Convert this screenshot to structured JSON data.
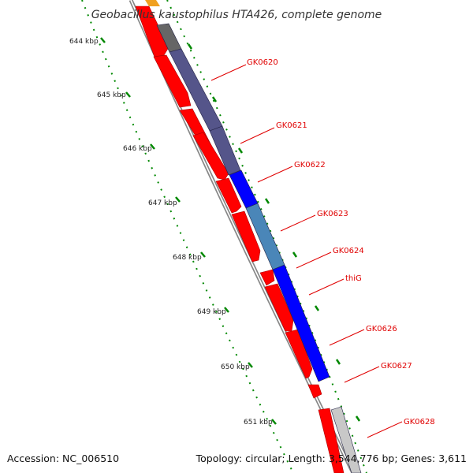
{
  "title": "Geobacillus kaustophilus HTA426, complete genome",
  "footer": {
    "accession": "Accession: NC_006510",
    "topology": "Topology: circular; Length: 3,544,776 bp; Genes: 3,611"
  },
  "colors": {
    "forward_cds": "#ff0000",
    "reverse_cds_dark": "#55558a",
    "reverse_cds_blue": "#0000ff",
    "reverse_cds_steel": "#4a86b8",
    "reverse_cds_gray": "#666666",
    "reverse_cds_light": "#c8c8c8",
    "orange_feature": "#f0a020",
    "backbone": "#888888",
    "ticks": "#008800",
    "label_lines": "#e00000"
  },
  "kbp_labels": [
    "644 kbp",
    "645 kbp",
    "646 kbp",
    "647 kbp",
    "648 kbp",
    "649 kbp",
    "650 kbp",
    "651 kbp"
  ],
  "genes": [
    {
      "name": "GK0620"
    },
    {
      "name": "GK0621"
    },
    {
      "name": "GK0622"
    },
    {
      "name": "GK0623"
    },
    {
      "name": "GK0624"
    },
    {
      "name": "thiG"
    },
    {
      "name": "GK0626"
    },
    {
      "name": "GK0627"
    },
    {
      "name": "GK0628"
    }
  ]
}
